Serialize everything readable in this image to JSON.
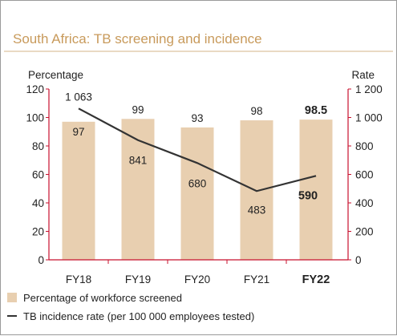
{
  "chart_data": {
    "type": "bar",
    "title": "South Africa: TB screening and incidence",
    "categories": [
      "FY18",
      "FY19",
      "FY20",
      "FY21",
      "FY22"
    ],
    "highlight_category": "FY22",
    "ylabel": "Percentage",
    "ylabel_right": "Rate",
    "ylim": [
      0,
      120
    ],
    "ylim_right": [
      0,
      1200
    ],
    "yticks": [
      "0",
      "20",
      "40",
      "60",
      "80",
      "100",
      "120"
    ],
    "yticks_right": [
      "0",
      "200",
      "400",
      "600",
      "800",
      "1 000",
      "1 200"
    ],
    "grid": false,
    "legend_position": "bottom-left",
    "series": [
      {
        "name": "Percentage of workforce screened",
        "type": "bar",
        "axis": "left",
        "values": [
          97,
          99,
          93,
          98,
          98.5
        ],
        "labels": [
          "97",
          "99",
          "93",
          "98",
          "98.5"
        ],
        "color": "#e8cfb0"
      },
      {
        "name": "TB incidence rate (per 100 000 employees tested)",
        "type": "line",
        "axis": "right",
        "values": [
          1063,
          841,
          680,
          483,
          590
        ],
        "labels": [
          "1 063",
          "841",
          "680",
          "483",
          "590"
        ],
        "color": "#333333"
      }
    ],
    "title_color": "#c89a5b",
    "axis_color": "#c8102e"
  }
}
